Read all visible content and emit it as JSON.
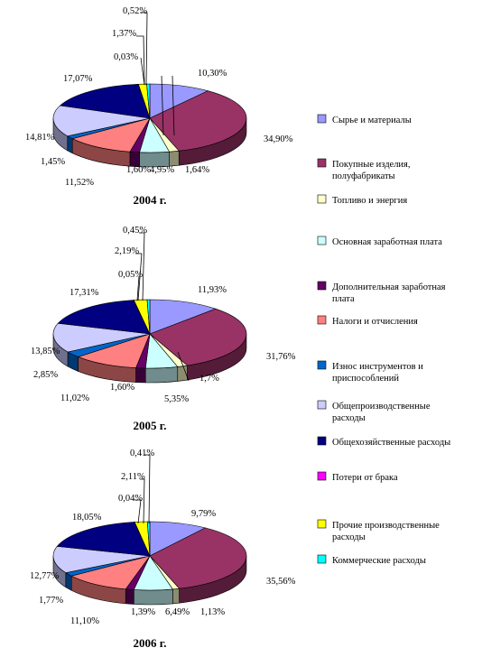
{
  "chart_data": [
    {
      "type": "pie",
      "title": "2004 г.",
      "values": [
        10.3,
        34.9,
        1.64,
        4.95,
        1.6,
        11.52,
        1.45,
        14.81,
        17.07,
        0.03,
        1.37,
        0.52
      ],
      "labels": [
        "10,30%",
        "34,90%",
        "1,64%",
        "4,95%",
        "1,60%",
        "11,52%",
        "1,45%",
        "14,81%",
        "17,07%",
        "0,03%",
        "1,37%",
        "0,52%"
      ]
    },
    {
      "type": "pie",
      "title": "2005 г.",
      "values": [
        11.93,
        31.76,
        1.7,
        5.35,
        1.6,
        11.02,
        2.85,
        13.85,
        17.31,
        0.05,
        2.19,
        0.45
      ],
      "labels": [
        "11,93%",
        "31,76%",
        "1,7%",
        "5,35%",
        "1,60%",
        "11,02%",
        "2,85%",
        "13,85%",
        "17,31%",
        "0,05%",
        "2,19%",
        "0,45%"
      ]
    },
    {
      "type": "pie",
      "title": "2006 г.",
      "values": [
        9.79,
        35.56,
        1.13,
        6.49,
        1.39,
        11.1,
        1.77,
        12.77,
        18.05,
        0.04,
        2.11,
        0.41
      ],
      "labels": [
        "9,79%",
        "35,56%",
        "1,13%",
        "6,49%",
        "1,39%",
        "11,10%",
        "1,77%",
        "12,77%",
        "18,05%",
        "0,04%",
        "2,11%",
        "0,41%"
      ]
    }
  ],
  "legend": [
    {
      "label": "Сырье и материалы",
      "color": "#9999ff"
    },
    {
      "label": "Покупные изделия, полуфабрикаты",
      "color": "#993366"
    },
    {
      "label": "Топливо и энергия",
      "color": "#ffffcc"
    },
    {
      "label": "Основная заработная плата",
      "color": "#ccffff"
    },
    {
      "label": "Дополнительная заработная плата",
      "color": "#660066"
    },
    {
      "label": "Налоги и отчисления",
      "color": "#ff8080"
    },
    {
      "label": "Износ инструментов и приспособлений",
      "color": "#0066cc"
    },
    {
      "label": "Общепроизводственные расходы",
      "color": "#ccccff"
    },
    {
      "label": "Общехозяйственные расходы",
      "color": "#000080"
    },
    {
      "label": "Потери от брака",
      "color": "#ff00ff"
    },
    {
      "label": "Прочие производственные расходы",
      "color": "#ffff00"
    },
    {
      "label": "Коммерческие расходы",
      "color": "#00ffff"
    }
  ]
}
